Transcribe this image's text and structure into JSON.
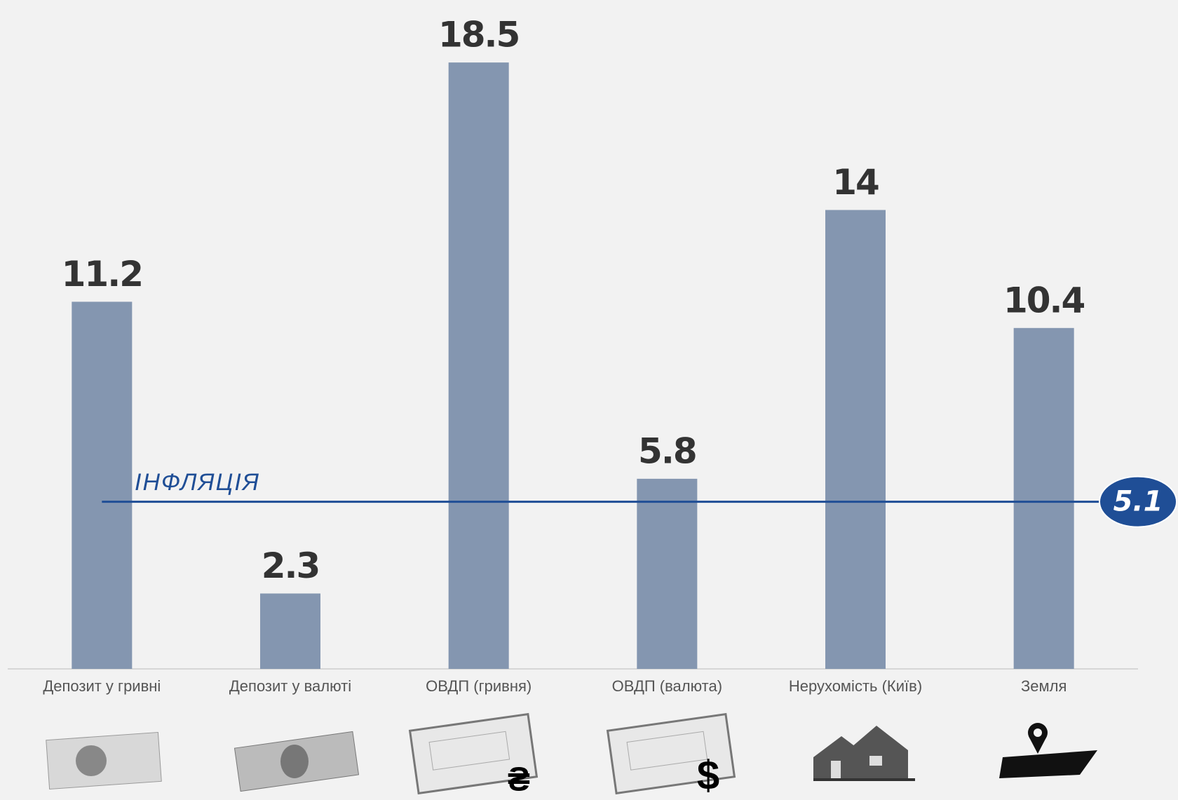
{
  "chart_data": {
    "type": "bar",
    "categories": [
      "Депозит у гривні",
      "Депозит у валюті",
      "ОВДП (гривня)",
      "ОВДП (валюта)",
      "Нерухомість (Київ)",
      "Земля"
    ],
    "values": [
      11.2,
      2.3,
      18.5,
      5.8,
      14,
      10.4
    ],
    "color": "#8496b0",
    "ylim": [
      0,
      20
    ],
    "reference_line": {
      "label": "ІНФЛЯЦІЯ",
      "value": 5.1,
      "color": "#1f4e96"
    }
  }
}
